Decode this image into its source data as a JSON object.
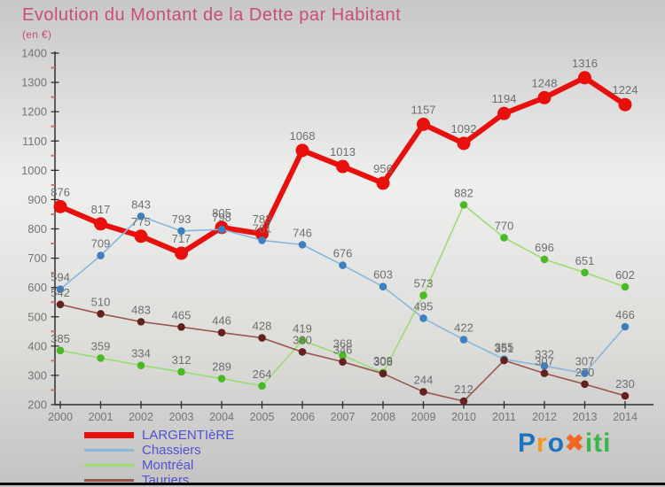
{
  "header": {
    "title": "Evolution du Montant de la Dette par Habitant",
    "subtitle": "(en €)",
    "title_color": "#c94e74"
  },
  "chart_data": {
    "type": "line",
    "x": [
      2000,
      2001,
      2002,
      2003,
      2004,
      2005,
      2006,
      2007,
      2008,
      2009,
      2010,
      2011,
      2012,
      2013,
      2014
    ],
    "ylim": [
      200,
      1400
    ],
    "ytick_step": 100,
    "yminor_step": 50,
    "grid": false,
    "legend_position": "bottom-left",
    "series": [
      {
        "name": "LARGENTIèRE",
        "line_color": "#e8100c",
        "dot_color": "#e8100c",
        "line_width": 6,
        "dot_radius": 7.5,
        "values": [
          876,
          817,
          775,
          717,
          805,
          783,
          1068,
          1013,
          956,
          1157,
          1092,
          1194,
          1248,
          1316,
          1224
        ]
      },
      {
        "name": "Chassiers",
        "line_color": "#8ab6dc",
        "dot_color": "#3d7fc1",
        "line_width": 1.6,
        "dot_radius": 4.3,
        "values": [
          594,
          709,
          843,
          793,
          798,
          761,
          746,
          676,
          603,
          495,
          422,
          355,
          332,
          307,
          466
        ]
      },
      {
        "name": "Montréal",
        "line_color": "#9bdc73",
        "dot_color": "#4ab827",
        "line_width": 1.6,
        "dot_radius": 4.3,
        "values": [
          385,
          359,
          334,
          312,
          289,
          264,
          419,
          368,
          309,
          573,
          882,
          770,
          696,
          651,
          602
        ]
      },
      {
        "name": "Tauriers",
        "line_color": "#99564d",
        "dot_color": "#64221e",
        "line_width": 1.6,
        "dot_radius": 4.3,
        "values": [
          542,
          510,
          483,
          465,
          446,
          428,
          380,
          346,
          306,
          244,
          212,
          351,
          307,
          270,
          230
        ]
      }
    ],
    "value_label_color": "#6e6e6e",
    "axis_color": "#2e2e2e",
    "tick_label_color": "#757575",
    "minor_tick_color": "#d96a6a"
  },
  "legend": {
    "text_color": "#5153cf"
  },
  "logo": {
    "name": "Proxiti",
    "letters": [
      {
        "ch": "P",
        "color": "#1e73be"
      },
      {
        "ch": "r",
        "color": "#f7941d"
      },
      {
        "ch": "o",
        "color": "#1e73be"
      },
      {
        "ch": "✖",
        "color": "#f26522"
      },
      {
        "ch": "i",
        "color": "#39b54a"
      },
      {
        "ch": "t",
        "color": "#39b54a"
      },
      {
        "ch": "i",
        "color": "#39b54a"
      }
    ]
  }
}
